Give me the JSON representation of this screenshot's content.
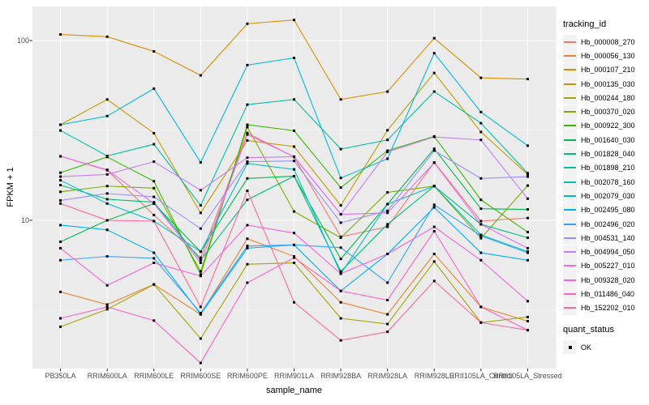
{
  "chart_data": {
    "type": "line",
    "xlabel": "sample_name",
    "ylabel": "FPKM + 1",
    "yscale": "log10",
    "ylim": [
      1.4,
      155
    ],
    "yticks": [
      100,
      10
    ],
    "ytick_labels": [
      "100",
      "10"
    ],
    "yminor_breaks": [
      31.62,
      3.162
    ],
    "grid": "ggplot-gray",
    "panel_color": "#EBEBEB",
    "gridline_color": "#FFFFFF",
    "tick_color": "#333333",
    "tick_label_color": "#4D4D4D",
    "point_marker": "black-square",
    "categories": [
      "PB350LA",
      "RRIM600LA",
      "RRIM600LE",
      "RRIM600SE",
      "RRIM600PE",
      "RRIM901LA",
      "RRIM928BA",
      "RRIM928LA",
      "RRIM928LE",
      "RRII105LA_Control",
      "RRII105LA_Stressed"
    ],
    "series": [
      {
        "name": "Hb_000008_270",
        "color": "#F8766D",
        "values": [
          22.7,
          19.0,
          10.7,
          6.2,
          30.6,
          22.5,
          8.1,
          9.2,
          21.0,
          9.9,
          10.3
        ]
      },
      {
        "name": "Hb_000056_130",
        "color": "#EA8331",
        "values": [
          4.0,
          3.4,
          4.4,
          3.0,
          7.9,
          6.3,
          3.5,
          3.0,
          6.5,
          3.3,
          2.75
        ]
      },
      {
        "name": "Hb_000107_210",
        "color": "#D89000",
        "values": [
          108,
          105,
          87,
          64,
          124,
          130,
          47,
          52,
          103,
          62,
          61
        ]
      },
      {
        "name": "Hb_000135_030",
        "color": "#C09B00",
        "values": [
          34,
          47,
          30.5,
          11.0,
          27.8,
          25.7,
          12.1,
          31.7,
          66,
          31,
          18
        ]
      },
      {
        "name": "Hb_000244_180",
        "color": "#A3A500",
        "values": [
          2.56,
          3.2,
          4.4,
          2.2,
          5.7,
          5.8,
          2.85,
          2.65,
          5.9,
          2.7,
          2.9
        ]
      },
      {
        "name": "Hb_000370_020",
        "color": "#7CAE00",
        "values": [
          14.4,
          15.5,
          15.1,
          5.2,
          33,
          11.2,
          8.0,
          14.3,
          15.5,
          7.95,
          15.6
        ]
      },
      {
        "name": "Hb_000922_300",
        "color": "#39B600",
        "values": [
          18.4,
          22.5,
          16.5,
          5.0,
          34,
          31.5,
          15.2,
          24.4,
          29.3,
          13,
          8.6
        ]
      },
      {
        "name": "Hb_001640_030",
        "color": "#00BB4E",
        "values": [
          7.6,
          10.0,
          12.4,
          6.7,
          17.1,
          17.6,
          6.1,
          12.3,
          25,
          11.6,
          11.5
        ]
      },
      {
        "name": "Hb_001828_040",
        "color": "#00BF7D",
        "values": [
          15.7,
          13.1,
          12.6,
          6.0,
          13.0,
          17.6,
          5.2,
          9.5,
          15.5,
          9.5,
          8.0
        ]
      },
      {
        "name": "Hb_001898_210",
        "color": "#00C1A3",
        "values": [
          31.6,
          22.8,
          26.5,
          12.1,
          44,
          47,
          24.9,
          28,
          52,
          34.7,
          18.3
        ]
      },
      {
        "name": "Hb_002078_160",
        "color": "#00BFC4",
        "values": [
          16.7,
          12.4,
          9.9,
          6.7,
          20.7,
          19.2,
          5.05,
          12.3,
          15.5,
          8.3,
          6.7
        ]
      },
      {
        "name": "Hb_002079_030",
        "color": "#00BADE",
        "values": [
          34,
          38,
          54,
          21,
          73,
          80,
          17.2,
          22,
          85,
          40,
          26
        ]
      },
      {
        "name": "Hb_002495_080",
        "color": "#00B0F6",
        "values": [
          9.4,
          8.85,
          6.6,
          3.0,
          7.0,
          7.3,
          4.05,
          6.5,
          11.8,
          6.6,
          6.0
        ]
      },
      {
        "name": "Hb_002496_020",
        "color": "#35A2FF",
        "values": [
          6.0,
          6.3,
          6.15,
          3.05,
          7.2,
          7.3,
          7.05,
          4.5,
          12.2,
          8.2,
          6.6
        ]
      },
      {
        "name": "Hb_004531_140",
        "color": "#9590FF",
        "values": [
          12.9,
          14.1,
          13.5,
          9.0,
          21.2,
          21.4,
          9.7,
          11.3,
          24.4,
          17.1,
          17.5
        ]
      },
      {
        "name": "Hb_004994_050",
        "color": "#C77CFF",
        "values": [
          17.5,
          18.0,
          21.2,
          14.7,
          22.3,
          22.6,
          10.8,
          24.0,
          29.1,
          28.0,
          13.2
        ]
      },
      {
        "name": "Hb_005227_010",
        "color": "#E76BF3",
        "values": [
          22.7,
          19.1,
          12.4,
          5.8,
          30.0,
          22.6,
          10.8,
          11.0,
          20.9,
          9.5,
          7.0
        ]
      },
      {
        "name": "Hb_009328_020",
        "color": "#FA62DB",
        "values": [
          7.0,
          4.35,
          5.8,
          4.9,
          9.4,
          8.5,
          5.05,
          6.5,
          9.2,
          6.0,
          3.55
        ]
      },
      {
        "name": "Hb_011486_040",
        "color": "#FF61C9",
        "values": [
          2.85,
          3.3,
          2.77,
          1.61,
          4.5,
          6.2,
          4.05,
          3.6,
          8.7,
          3.3,
          2.45
        ]
      },
      {
        "name": "Hb_152202_010",
        "color": "#FF6A98",
        "values": [
          12.4,
          10.0,
          9.9,
          3.3,
          14.6,
          3.5,
          2.15,
          2.4,
          4.6,
          2.7,
          2.45
        ]
      }
    ],
    "legend": {
      "position": "right",
      "tracking_title": "tracking_id",
      "quant_title": "quant_status",
      "quant_items": [
        "OK"
      ]
    }
  }
}
